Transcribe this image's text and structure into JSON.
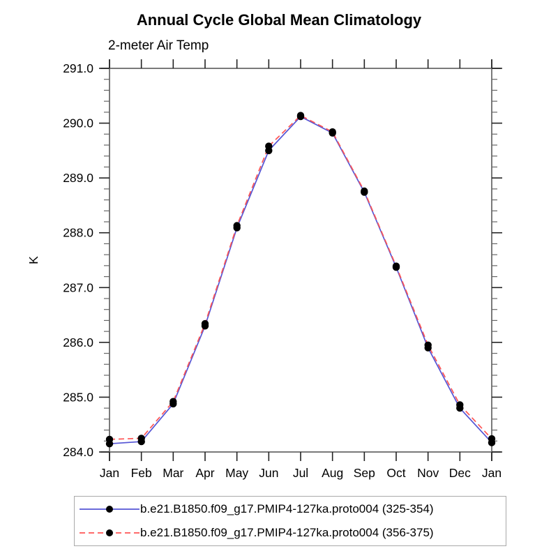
{
  "title": "Annual Cycle Global Mean Climatology",
  "subtitle": "2-meter Air Temp",
  "chart_data": {
    "type": "line",
    "title": "Annual Cycle Global Mean Climatology",
    "subtitle": "2-meter Air Temp",
    "ylabel": "K",
    "xlabel": "",
    "ylim": [
      284.0,
      291.0
    ],
    "y_major_tick_step": 1.0,
    "y_minor_tick_step": 0.2,
    "y_tick_labels": [
      "284.0",
      "285.0",
      "286.0",
      "287.0",
      "288.0",
      "289.0",
      "290.0",
      "291.0"
    ],
    "x_tick_labels": [
      "Jan",
      "Feb",
      "Mar",
      "Apr",
      "May",
      "Jun",
      "Jul",
      "Aug",
      "Sep",
      "Oct",
      "Nov",
      "Dec",
      "Jan"
    ],
    "grid": false,
    "legend_position": "bottom",
    "series": [
      {
        "name": "b.e21.B1850.f09_g17.PMIP4-127ka.proto004 (325-354)",
        "color": "#5555d5",
        "line_style": "solid",
        "marker": "filled-circle",
        "marker_color": "#000000",
        "values": [
          284.15,
          284.19,
          284.88,
          286.3,
          288.09,
          289.5,
          290.12,
          289.82,
          288.74,
          287.37,
          285.9,
          284.8,
          284.17
        ]
      },
      {
        "name": "b.e21.B1850.f09_g17.PMIP4-127ka.proto004 (356-375)",
        "color": "#ff5555",
        "line_style": "dashed",
        "marker": "filled-circle",
        "marker_color": "#000000",
        "values": [
          284.23,
          284.25,
          284.92,
          286.34,
          288.13,
          289.58,
          290.14,
          289.84,
          288.76,
          287.39,
          285.95,
          284.86,
          284.24
        ]
      }
    ]
  },
  "colors": {
    "axis_border": "#7a7a7a",
    "major_tick": "#222222",
    "minor_tick": "#666666",
    "text": "#000000"
  }
}
